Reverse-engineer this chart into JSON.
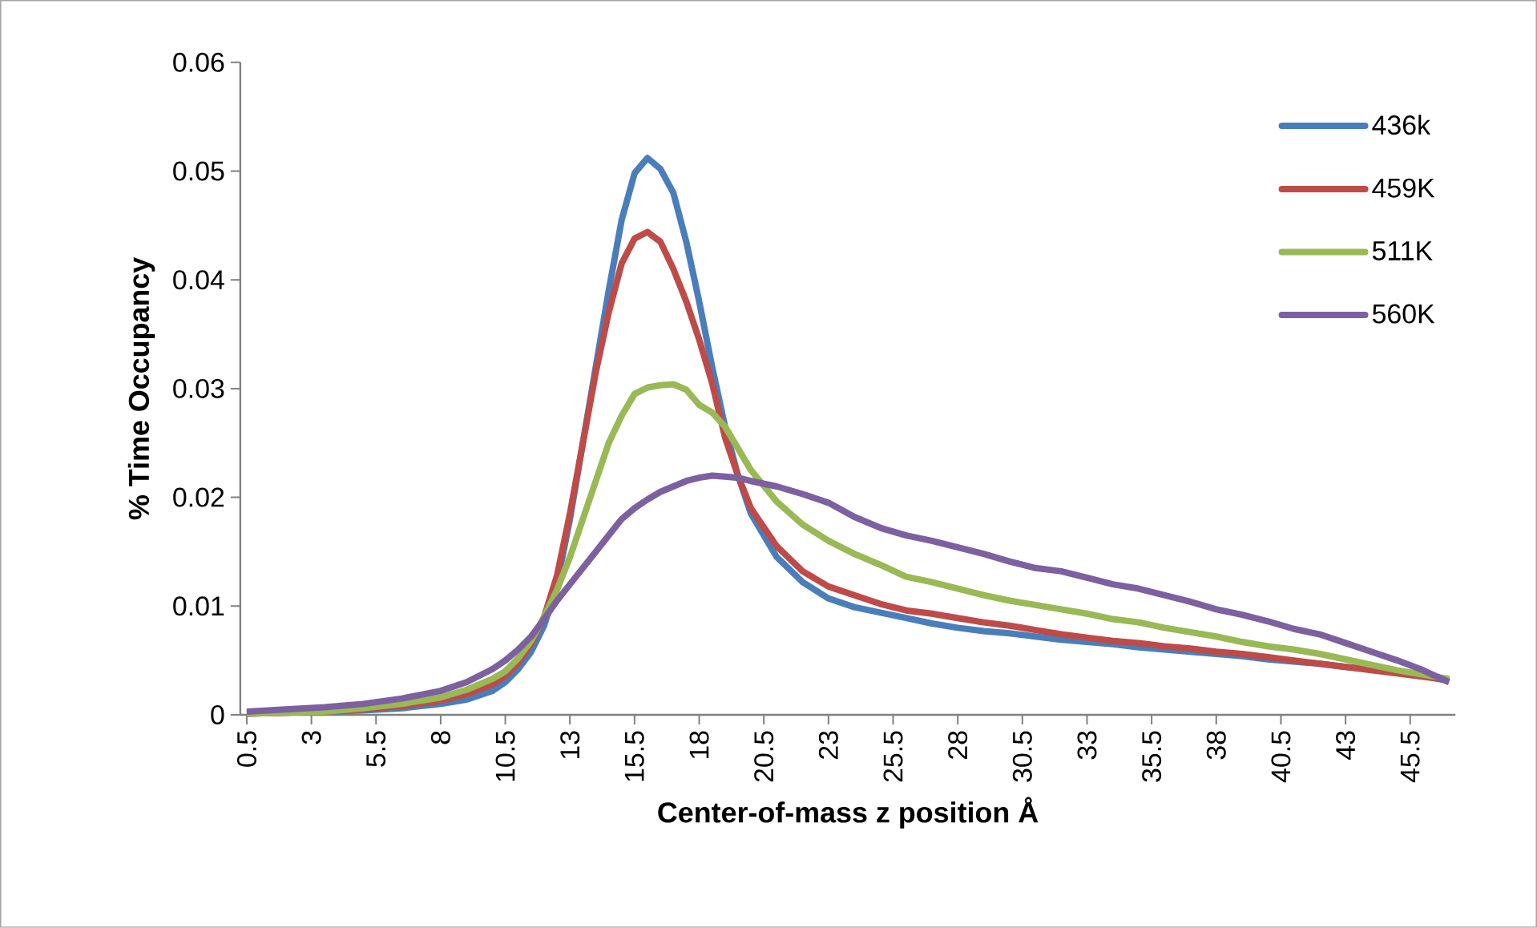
{
  "chart_data": {
    "type": "line",
    "xlabel": "Center-of-mass z position Å",
    "ylabel": "% Time Occupancy",
    "x": [
      0.5,
      2,
      3.5,
      5,
      6.5,
      8,
      9,
      10,
      10.5,
      11,
      11.5,
      12,
      12.5,
      13,
      13.5,
      14,
      14.5,
      15,
      15.5,
      16,
      16.5,
      17,
      17.5,
      18,
      18.5,
      19,
      19.5,
      20,
      21,
      22,
      23,
      24,
      25,
      26,
      27,
      28,
      29,
      30,
      31,
      32,
      33,
      34,
      35,
      36,
      37,
      38,
      39,
      40,
      41,
      42,
      43,
      44,
      45,
      46,
      47
    ],
    "series": [
      {
        "name": "436k",
        "color": "#4a7ebb",
        "values": [
          0.0001,
          0.0002,
          0.0003,
          0.0004,
          0.0006,
          0.001,
          0.0014,
          0.0022,
          0.003,
          0.0042,
          0.0058,
          0.0082,
          0.012,
          0.018,
          0.025,
          0.032,
          0.039,
          0.0455,
          0.0498,
          0.0512,
          0.0502,
          0.048,
          0.0435,
          0.038,
          0.032,
          0.0265,
          0.022,
          0.0185,
          0.0145,
          0.0122,
          0.0107,
          0.0099,
          0.0094,
          0.0089,
          0.0084,
          0.008,
          0.0077,
          0.0075,
          0.0072,
          0.0069,
          0.0067,
          0.0065,
          0.0062,
          0.006,
          0.0058,
          0.0056,
          0.0054,
          0.0051,
          0.0049,
          0.0047,
          0.0044,
          0.0042,
          0.0039,
          0.0036,
          0.0031
        ]
      },
      {
        "name": "459K",
        "color": "#be4b48",
        "values": [
          0.0001,
          0.0002,
          0.0003,
          0.0005,
          0.0008,
          0.0013,
          0.0019,
          0.0028,
          0.0036,
          0.0048,
          0.0065,
          0.009,
          0.0128,
          0.0185,
          0.025,
          0.0315,
          0.037,
          0.0415,
          0.0438,
          0.0444,
          0.0435,
          0.041,
          0.038,
          0.0345,
          0.0305,
          0.0255,
          0.022,
          0.019,
          0.0155,
          0.0132,
          0.0118,
          0.011,
          0.0102,
          0.0096,
          0.0093,
          0.0089,
          0.0085,
          0.0082,
          0.0078,
          0.0074,
          0.0071,
          0.0068,
          0.0066,
          0.0063,
          0.0061,
          0.0058,
          0.0056,
          0.0053,
          0.005,
          0.0047,
          0.0044,
          0.0041,
          0.0038,
          0.0035,
          0.0032
        ]
      },
      {
        "name": "511K",
        "color": "#98b954",
        "values": [
          0.0001,
          0.0002,
          0.0003,
          0.0006,
          0.001,
          0.0016,
          0.0023,
          0.0033,
          0.004,
          0.0052,
          0.0068,
          0.009,
          0.0115,
          0.0145,
          0.018,
          0.0215,
          0.025,
          0.0275,
          0.0295,
          0.0301,
          0.0303,
          0.0304,
          0.0299,
          0.0285,
          0.0278,
          0.0265,
          0.0245,
          0.0225,
          0.0196,
          0.0175,
          0.016,
          0.0148,
          0.0138,
          0.0127,
          0.0122,
          0.0116,
          0.011,
          0.0105,
          0.0101,
          0.0097,
          0.0093,
          0.0088,
          0.0085,
          0.008,
          0.0076,
          0.0072,
          0.0067,
          0.0063,
          0.006,
          0.0056,
          0.0051,
          0.0046,
          0.0041,
          0.0037,
          0.0033
        ]
      },
      {
        "name": "560K",
        "color": "#7d60a0",
        "values": [
          0.0003,
          0.0005,
          0.0007,
          0.001,
          0.0015,
          0.0022,
          0.003,
          0.0042,
          0.005,
          0.006,
          0.0072,
          0.0088,
          0.0105,
          0.012,
          0.0135,
          0.015,
          0.0165,
          0.018,
          0.019,
          0.0198,
          0.0205,
          0.021,
          0.0215,
          0.0218,
          0.022,
          0.0219,
          0.0218,
          0.0215,
          0.021,
          0.0203,
          0.0195,
          0.0182,
          0.0172,
          0.0165,
          0.016,
          0.0154,
          0.0148,
          0.0141,
          0.0135,
          0.0132,
          0.0126,
          0.012,
          0.0116,
          0.011,
          0.0104,
          0.0097,
          0.0092,
          0.0086,
          0.0079,
          0.0074,
          0.0066,
          0.0058,
          0.005,
          0.0041,
          0.003
        ]
      }
    ],
    "xlim": [
      0.25,
      47.25
    ],
    "xticks": [
      0.5,
      3,
      5.5,
      8,
      10.5,
      13,
      15.5,
      18,
      20.5,
      23,
      25.5,
      28,
      30.5,
      33,
      35.5,
      38,
      40.5,
      43,
      45.5
    ],
    "ylim": [
      0,
      0.06
    ],
    "yticks": [
      0,
      0.01,
      0.02,
      0.03,
      0.04,
      0.05,
      0.06
    ],
    "grid": false,
    "legend": "top right",
    "marker": "none",
    "line_style": "solid"
  }
}
